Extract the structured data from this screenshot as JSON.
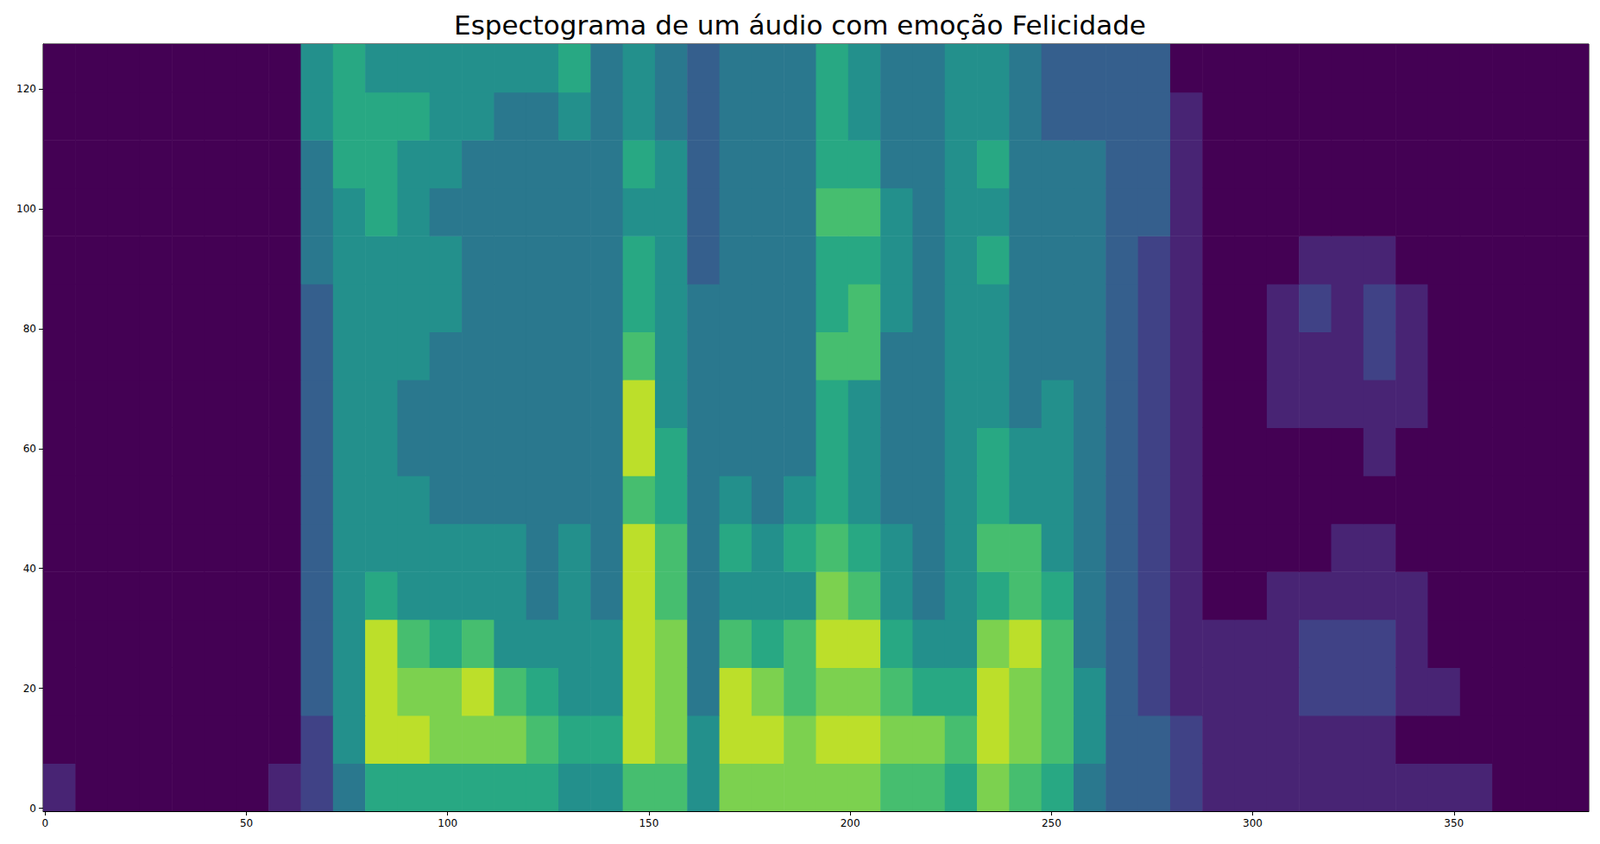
{
  "chart_data": {
    "type": "heatmap",
    "title": "Espectograma de um áudio com emoção Felicidade",
    "xlim": [
      -0.5,
      383.5
    ],
    "ylim": [
      -0.5,
      127.5
    ],
    "xticks": [
      0,
      50,
      100,
      150,
      200,
      250,
      300,
      350
    ],
    "yticks": [
      0,
      20,
      40,
      60,
      80,
      100,
      120
    ],
    "color_range": [
      0,
      10
    ],
    "x_edges": [
      -0.5,
      7.5,
      15.5,
      23.5,
      31.5,
      39.5,
      47.5,
      55.5,
      63.5,
      71.5,
      79.5,
      87.5,
      95.5,
      103.5,
      111.5,
      119.5,
      127.5,
      135.5,
      143.5,
      151.5,
      159.5,
      167.5,
      175.5,
      183.5,
      191.5,
      199.5,
      207.5,
      215.5,
      223.5,
      231.5,
      239.5,
      247.5,
      255.5,
      263.5,
      271.5,
      279.5,
      287.5,
      295.5,
      303.5,
      311.5,
      319.5,
      327.5,
      335.5,
      343.5,
      351.5,
      359.5,
      367.5,
      375.5,
      383.5
    ],
    "y_edges": [
      -0.5,
      7.5,
      15.5,
      23.5,
      31.5,
      39.5,
      47.5,
      55.5,
      63.5,
      71.5,
      79.5,
      87.5,
      95.5,
      103.5,
      111.5,
      119.5,
      127.5
    ],
    "cells": [
      [
        1,
        0,
        0,
        0,
        0,
        0,
        0,
        1,
        2,
        4,
        6,
        6,
        6,
        6,
        6,
        6,
        5,
        5,
        7,
        7,
        5,
        8,
        8,
        8,
        8,
        8,
        7,
        7,
        6,
        8,
        7,
        6,
        4,
        3,
        3,
        2,
        1,
        1,
        1,
        1,
        1,
        1,
        1,
        1,
        1,
        0,
        0,
        0
      ],
      [
        0,
        0,
        0,
        0,
        0,
        0,
        0,
        0,
        2,
        5,
        9,
        9,
        8,
        8,
        8,
        7,
        6,
        6,
        9,
        8,
        5,
        9,
        9,
        8,
        9,
        9,
        8,
        8,
        7,
        9,
        8,
        7,
        5,
        3,
        3,
        2,
        1,
        1,
        1,
        1,
        1,
        1,
        0,
        0,
        0,
        0,
        0,
        0
      ],
      [
        0,
        0,
        0,
        0,
        0,
        0,
        0,
        0,
        3,
        5,
        9,
        8,
        8,
        9,
        7,
        6,
        5,
        5,
        9,
        8,
        4,
        9,
        8,
        7,
        8,
        8,
        7,
        6,
        6,
        9,
        8,
        7,
        5,
        3,
        2,
        1,
        1,
        1,
        1,
        2,
        2,
        2,
        1,
        1,
        0,
        0,
        0,
        0
      ],
      [
        0,
        0,
        0,
        0,
        0,
        0,
        0,
        0,
        3,
        5,
        9,
        7,
        6,
        7,
        5,
        5,
        5,
        5,
        9,
        8,
        4,
        7,
        6,
        7,
        9,
        9,
        6,
        5,
        5,
        8,
        9,
        7,
        4,
        3,
        2,
        1,
        1,
        1,
        1,
        2,
        2,
        2,
        1,
        0,
        0,
        0,
        0,
        0
      ],
      [
        0,
        0,
        0,
        0,
        0,
        0,
        0,
        0,
        3,
        5,
        6,
        5,
        5,
        5,
        5,
        4,
        5,
        4,
        9,
        7,
        4,
        5,
        5,
        5,
        8,
        7,
        5,
        4,
        5,
        6,
        7,
        6,
        4,
        3,
        2,
        1,
        0,
        0,
        1,
        1,
        1,
        1,
        1,
        0,
        0,
        0,
        0,
        0
      ],
      [
        0,
        0,
        0,
        0,
        0,
        0,
        0,
        0,
        3,
        5,
        5,
        5,
        5,
        5,
        5,
        4,
        5,
        4,
        9,
        7,
        4,
        6,
        5,
        6,
        7,
        6,
        5,
        4,
        5,
        7,
        7,
        5,
        4,
        3,
        2,
        1,
        0,
        0,
        0,
        0,
        1,
        1,
        0,
        0,
        0,
        0,
        0,
        0
      ],
      [
        0,
        0,
        0,
        0,
        0,
        0,
        0,
        0,
        3,
        5,
        5,
        5,
        4,
        4,
        4,
        4,
        4,
        4,
        7,
        6,
        4,
        5,
        4,
        5,
        6,
        5,
        4,
        4,
        5,
        6,
        5,
        5,
        4,
        3,
        2,
        1,
        0,
        0,
        0,
        0,
        0,
        0,
        0,
        0,
        0,
        0,
        0,
        0
      ],
      [
        0,
        0,
        0,
        0,
        0,
        0,
        0,
        0,
        3,
        5,
        5,
        4,
        4,
        4,
        4,
        4,
        4,
        4,
        9,
        6,
        4,
        4,
        4,
        4,
        6,
        5,
        4,
        4,
        5,
        6,
        5,
        5,
        4,
        3,
        2,
        1,
        0,
        0,
        0,
        0,
        0,
        1,
        0,
        0,
        0,
        0,
        0,
        0
      ],
      [
        0,
        0,
        0,
        0,
        0,
        0,
        0,
        0,
        3,
        5,
        5,
        4,
        4,
        4,
        4,
        4,
        4,
        4,
        9,
        5,
        4,
        4,
        4,
        4,
        6,
        5,
        4,
        4,
        5,
        5,
        4,
        5,
        4,
        3,
        2,
        1,
        0,
        0,
        1,
        1,
        1,
        1,
        1,
        0,
        0,
        0,
        0,
        0
      ],
      [
        0,
        0,
        0,
        0,
        0,
        0,
        0,
        0,
        3,
        5,
        5,
        5,
        4,
        4,
        4,
        4,
        4,
        4,
        7,
        5,
        4,
        4,
        4,
        4,
        7,
        7,
        4,
        4,
        5,
        5,
        4,
        4,
        4,
        3,
        2,
        1,
        0,
        0,
        1,
        1,
        1,
        2,
        1,
        0,
        0,
        0,
        0,
        0
      ],
      [
        0,
        0,
        0,
        0,
        0,
        0,
        0,
        0,
        3,
        5,
        5,
        5,
        5,
        4,
        4,
        4,
        4,
        4,
        6,
        5,
        4,
        4,
        4,
        4,
        6,
        7,
        5,
        4,
        5,
        5,
        4,
        4,
        4,
        3,
        2,
        1,
        0,
        0,
        1,
        2,
        1,
        2,
        1,
        0,
        0,
        0,
        0,
        0
      ],
      [
        0,
        0,
        0,
        0,
        0,
        0,
        0,
        0,
        4,
        5,
        5,
        5,
        5,
        4,
        4,
        4,
        4,
        4,
        6,
        5,
        3,
        4,
        4,
        4,
        6,
        6,
        5,
        4,
        5,
        6,
        4,
        4,
        4,
        3,
        2,
        1,
        0,
        0,
        0,
        1,
        1,
        1,
        0,
        0,
        0,
        0,
        0,
        0
      ],
      [
        0,
        0,
        0,
        0,
        0,
        0,
        0,
        0,
        4,
        5,
        6,
        5,
        4,
        4,
        4,
        4,
        4,
        4,
        5,
        5,
        3,
        4,
        4,
        4,
        7,
        7,
        5,
        4,
        5,
        5,
        4,
        4,
        4,
        3,
        3,
        1,
        0,
        0,
        0,
        0,
        0,
        0,
        0,
        0,
        0,
        0,
        0,
        0
      ],
      [
        0,
        0,
        0,
        0,
        0,
        0,
        0,
        0,
        4,
        6,
        6,
        5,
        5,
        4,
        4,
        4,
        4,
        4,
        6,
        5,
        3,
        4,
        4,
        4,
        6,
        6,
        4,
        4,
        5,
        6,
        4,
        4,
        4,
        3,
        3,
        1,
        0,
        0,
        0,
        0,
        0,
        0,
        0,
        0,
        0,
        0,
        0,
        0
      ],
      [
        0,
        0,
        0,
        0,
        0,
        0,
        0,
        0,
        5,
        6,
        6,
        6,
        5,
        5,
        4,
        4,
        5,
        4,
        5,
        4,
        3,
        4,
        4,
        4,
        6,
        5,
        4,
        4,
        5,
        5,
        4,
        3,
        3,
        3,
        3,
        1,
        0,
        0,
        0,
        0,
        0,
        0,
        0,
        0,
        0,
        0,
        0,
        0
      ],
      [
        0,
        0,
        0,
        0,
        0,
        0,
        0,
        0,
        5,
        6,
        5,
        5,
        5,
        5,
        5,
        5,
        6,
        4,
        5,
        4,
        3,
        4,
        4,
        4,
        6,
        5,
        4,
        4,
        5,
        5,
        4,
        3,
        3,
        3,
        3,
        0,
        0,
        0,
        0,
        0,
        0,
        0,
        0,
        0,
        0,
        0,
        0,
        0
      ]
    ]
  }
}
